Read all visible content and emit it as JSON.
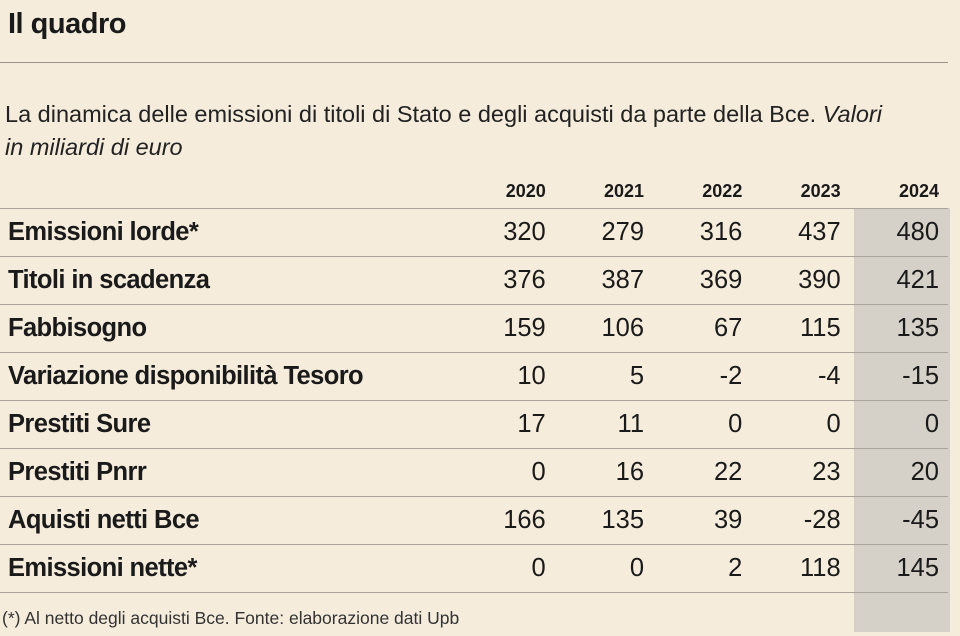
{
  "header": {
    "title": "Il quadro",
    "subtitle": "La dinamica delle emissioni di titoli di Stato e degli acquisti da parte della Bce.",
    "units": "Valori in miliardi di euro"
  },
  "footnote": "(*) Al netto degli acquisti Bce. Fonte: elaborazione dati Upb",
  "chart_data": {
    "type": "table",
    "title": "Il quadro",
    "columns": [
      "2020",
      "2021",
      "2022",
      "2023",
      "2024"
    ],
    "highlighted_column": "2024",
    "rows": [
      {
        "label": "Emissioni lorde*",
        "values": [
          "320",
          "279",
          "316",
          "437",
          "480"
        ]
      },
      {
        "label": "Titoli in scadenza",
        "values": [
          "376",
          "387",
          "369",
          "390",
          "421"
        ]
      },
      {
        "label": "Fabbisogno",
        "values": [
          "159",
          "106",
          "67",
          "115",
          "135"
        ]
      },
      {
        "label": "Variazione disponibilità Tesoro",
        "values": [
          "10",
          "5",
          "-2",
          "-4",
          "-15"
        ]
      },
      {
        "label": "Prestiti Sure",
        "values": [
          "17",
          "11",
          "0",
          "0",
          "0"
        ]
      },
      {
        "label": "Prestiti Pnrr",
        "values": [
          "0",
          "16",
          "22",
          "23",
          "20"
        ]
      },
      {
        "label": "Aquisti netti Bce",
        "values": [
          "166",
          "135",
          "39",
          "-28",
          "-45"
        ]
      },
      {
        "label": "Emissioni nette*",
        "values": [
          "0",
          "0",
          "2",
          "118",
          "145"
        ]
      }
    ]
  },
  "colors": {
    "background": "#f5ecdc",
    "highlight": "#d6d1c8",
    "rule": "#aaa49a"
  }
}
